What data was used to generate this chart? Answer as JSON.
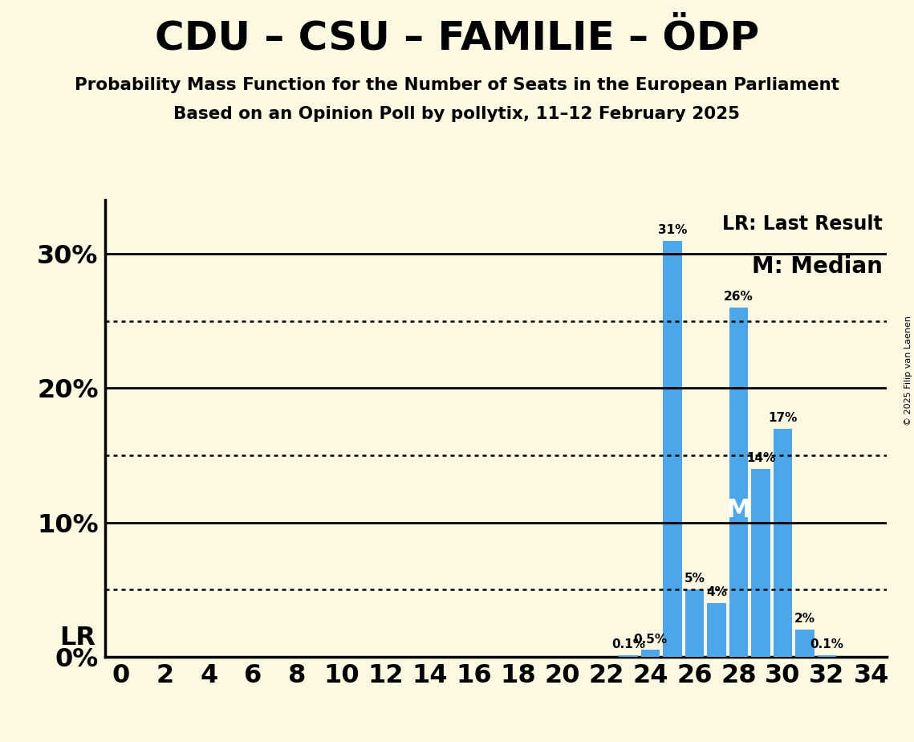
{
  "title": "CDU – CSU – FAMILIE – ÖDP",
  "subtitle1": "Probability Mass Function for the Number of Seats in the European Parliament",
  "subtitle2": "Based on an Opinion Poll by pollytix, 11–12 February 2025",
  "copyright": "© 2025 Filip van Laenen",
  "seats": [
    0,
    1,
    2,
    3,
    4,
    5,
    6,
    7,
    8,
    9,
    10,
    11,
    12,
    13,
    14,
    15,
    16,
    17,
    18,
    19,
    20,
    21,
    22,
    23,
    24,
    25,
    26,
    27,
    28,
    29,
    30,
    31,
    32,
    33,
    34
  ],
  "probabilities": [
    0,
    0,
    0,
    0,
    0,
    0,
    0,
    0,
    0,
    0,
    0,
    0,
    0,
    0,
    0,
    0,
    0,
    0,
    0,
    0,
    0,
    0,
    0,
    0.1,
    0.5,
    31,
    5,
    4,
    26,
    14,
    17,
    2,
    0.1,
    0,
    0
  ],
  "bar_color": "#4da6e8",
  "background_color": "#fdf8e1",
  "ylim_max": 34,
  "xtick_values": [
    0,
    2,
    4,
    6,
    8,
    10,
    12,
    14,
    16,
    18,
    20,
    22,
    24,
    26,
    28,
    30,
    32,
    34
  ],
  "ytick_positions": [
    0,
    10,
    20,
    30
  ],
  "ytick_labels": [
    "0%",
    "10%",
    "20%",
    "30%"
  ],
  "dotted_gridlines": [
    5,
    15,
    25
  ],
  "solid_gridlines": [
    10,
    20,
    30
  ],
  "median_seat": 28,
  "legend_lr": "LR: Last Result",
  "legend_m": "M: Median",
  "title_fontsize": 36,
  "subtitle_fontsize": 15.5,
  "tick_fontsize": 23,
  "bar_label_fontsize": 11,
  "legend_fontsize_lr": 17,
  "legend_fontsize_m": 20,
  "lr_fontsize": 23,
  "median_fontsize": 23,
  "copyright_fontsize": 8
}
